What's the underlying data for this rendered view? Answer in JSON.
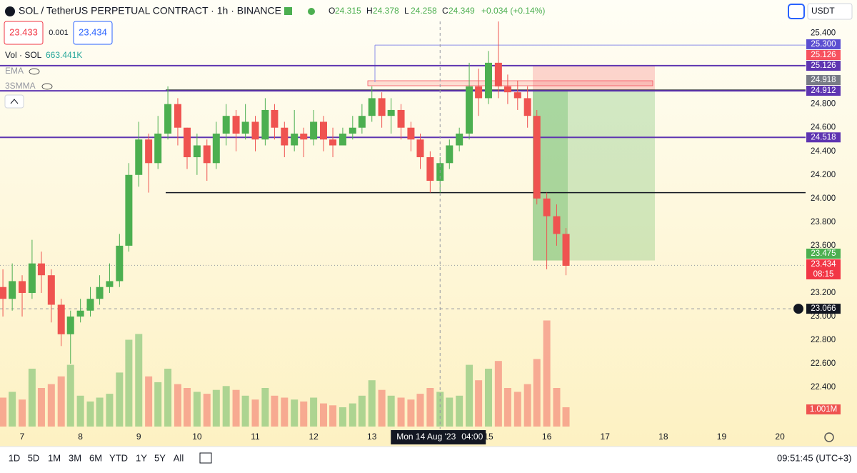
{
  "header": {
    "symbol": "SOL / TetherUS PERPETUAL CONTRACT · 1h · BINANCE",
    "ohlc": [
      {
        "key": "O",
        "value": 24.315
      },
      {
        "key": "H",
        "value": 24.378
      },
      {
        "key": "L",
        "value": 24.258
      },
      {
        "key": "C",
        "value": 24.349
      }
    ],
    "change": "+0.034 (+0.14%)",
    "sell_price": 23.433,
    "quantity": 0.001,
    "buy_price": 23.434,
    "volume_title": "Vol · SOL",
    "volume_value": "663.441K",
    "indicators": [
      "EMA",
      "3SMMA"
    ],
    "currency": "USDT"
  },
  "chart_data": {
    "type": "candlestick",
    "up_color": "#4caf50",
    "down_color": "#ef5350",
    "xlim": [
      6.62,
      20.44
    ],
    "xticks": [
      7,
      8,
      9,
      10,
      11,
      12,
      13,
      15,
      16,
      17,
      18,
      19,
      20
    ],
    "ylim": [
      22.08,
      25.47
    ],
    "yticks": [
      {
        "value": 22.4,
        "label": "22.400"
      },
      {
        "value": 22.6,
        "label": "22.600"
      },
      {
        "value": 22.8,
        "label": "22.800"
      },
      {
        "value": 23.0,
        "label": "23.000"
      },
      {
        "value": 23.2,
        "label": "23.200"
      },
      {
        "value": 23.6,
        "label": "23.600"
      },
      {
        "value": 23.8,
        "label": "23.800"
      },
      {
        "value": 24.0,
        "label": "24.000"
      },
      {
        "value": 24.2,
        "label": "24.200"
      },
      {
        "value": 24.4,
        "label": "24.400"
      },
      {
        "value": 24.6,
        "label": "24.600"
      },
      {
        "value": 24.8,
        "label": "24.800"
      },
      {
        "value": 25.4,
        "label": "25.400"
      }
    ],
    "x": [
      6.67,
      6.83,
      7.0,
      7.17,
      7.33,
      7.5,
      7.67,
      7.83,
      8.0,
      8.17,
      8.33,
      8.5,
      8.67,
      8.83,
      9.0,
      9.17,
      9.33,
      9.5,
      9.67,
      9.83,
      10.0,
      10.17,
      10.33,
      10.5,
      10.67,
      10.83,
      11.0,
      11.17,
      11.33,
      11.5,
      11.67,
      11.83,
      12.0,
      12.17,
      12.33,
      12.5,
      12.67,
      12.83,
      13.0,
      13.17,
      13.33,
      13.5,
      13.67,
      13.83,
      14.0,
      14.17,
      14.33,
      14.5,
      14.67,
      14.83,
      15.0,
      15.17,
      15.33,
      15.5,
      15.67,
      15.83,
      16.0,
      16.17,
      16.33
    ],
    "open": [
      23.25,
      23.15,
      23.3,
      23.2,
      23.45,
      23.35,
      23.1,
      22.85,
      23.0,
      23.05,
      23.15,
      23.25,
      23.3,
      23.6,
      24.2,
      24.5,
      24.3,
      24.55,
      24.8,
      24.6,
      24.35,
      24.45,
      24.3,
      24.55,
      24.7,
      24.55,
      24.65,
      24.5,
      24.75,
      24.6,
      24.45,
      24.55,
      24.5,
      24.65,
      24.5,
      24.45,
      24.55,
      24.6,
      24.7,
      24.85,
      24.7,
      24.75,
      24.6,
      24.5,
      24.35,
      24.15,
      24.3,
      24.45,
      24.55,
      24.95,
      24.85,
      25.15,
      24.95,
      24.9,
      24.85,
      24.7,
      24.0,
      23.85,
      23.7
    ],
    "high": [
      23.4,
      23.45,
      23.35,
      23.65,
      23.55,
      23.4,
      23.15,
      23.05,
      23.15,
      23.25,
      23.35,
      23.45,
      23.7,
      24.3,
      24.65,
      24.55,
      24.7,
      24.95,
      24.85,
      24.6,
      24.55,
      24.5,
      24.65,
      24.8,
      24.75,
      24.8,
      24.7,
      24.85,
      24.8,
      24.65,
      24.75,
      24.6,
      24.75,
      24.7,
      24.6,
      24.6,
      24.7,
      24.8,
      24.95,
      24.9,
      24.85,
      24.8,
      24.65,
      24.55,
      24.4,
      24.35,
      24.5,
      24.6,
      25.15,
      25.1,
      25.25,
      25.5,
      25.05,
      25.0,
      24.95,
      24.75,
      24.05,
      23.95,
      23.75
    ],
    "low": [
      23.0,
      23.05,
      23.0,
      23.15,
      23.2,
      22.95,
      22.75,
      22.6,
      22.95,
      23.0,
      23.1,
      23.2,
      23.25,
      23.55,
      24.1,
      24.05,
      24.25,
      24.5,
      24.45,
      24.25,
      24.2,
      24.15,
      24.25,
      24.45,
      24.4,
      24.5,
      24.4,
      24.45,
      24.5,
      24.35,
      24.4,
      24.35,
      24.45,
      24.4,
      24.35,
      24.45,
      24.5,
      24.55,
      24.65,
      24.6,
      24.55,
      24.5,
      24.4,
      24.25,
      24.05,
      24.05,
      24.25,
      24.4,
      24.5,
      24.7,
      24.8,
      24.85,
      24.8,
      24.75,
      24.6,
      23.95,
      23.4,
      23.6,
      23.35
    ],
    "close": [
      23.15,
      23.3,
      23.2,
      23.45,
      23.35,
      23.1,
      22.85,
      23.0,
      23.05,
      23.15,
      23.25,
      23.3,
      23.6,
      24.2,
      24.5,
      24.3,
      24.55,
      24.8,
      24.6,
      24.35,
      24.45,
      24.3,
      24.55,
      24.7,
      24.55,
      24.65,
      24.5,
      24.75,
      24.6,
      24.45,
      24.55,
      24.5,
      24.65,
      24.5,
      24.45,
      24.55,
      24.6,
      24.7,
      24.85,
      24.7,
      24.75,
      24.6,
      24.5,
      24.35,
      24.15,
      24.3,
      24.45,
      24.55,
      24.95,
      24.85,
      25.15,
      24.95,
      24.9,
      24.85,
      24.7,
      24.0,
      23.85,
      23.7,
      23.43
    ],
    "volume": [
      1.5,
      1.8,
      1.4,
      3.0,
      2.0,
      2.2,
      2.6,
      3.2,
      1.6,
      1.3,
      1.5,
      1.7,
      2.8,
      4.5,
      4.8,
      2.6,
      2.3,
      3.0,
      2.2,
      2.0,
      1.8,
      1.7,
      1.9,
      2.1,
      1.9,
      1.6,
      1.4,
      2.0,
      1.6,
      1.5,
      1.4,
      1.3,
      1.5,
      1.2,
      1.1,
      1.0,
      1.2,
      1.6,
      2.4,
      1.9,
      1.6,
      1.5,
      1.4,
      1.7,
      2.0,
      1.8,
      1.5,
      1.6,
      3.2,
      2.4,
      3.0,
      3.4,
      2.0,
      1.8,
      2.2,
      3.5,
      5.5,
      2.0,
      1.001
    ],
    "volume_label": "1.001M",
    "support_line": 24.05,
    "price_lines": [
      {
        "value": 25.3,
        "label": "25.300",
        "color": "#5b4fd1"
      },
      {
        "value": 25.126,
        "label": "25.126",
        "color": "#f7525f"
      },
      {
        "value": 25.126,
        "label": "25.126",
        "color": "#5e35b1"
      },
      {
        "value": 24.918,
        "label": "24.918",
        "color": "#787b86"
      },
      {
        "value": 24.912,
        "label": "24.912",
        "color": "#5e35b1"
      },
      {
        "value": 24.518,
        "label": "24.518",
        "color": "#5e35b1"
      },
      {
        "value": 23.475,
        "label": "23.475",
        "color": "#4caf50"
      },
      {
        "value": 23.434,
        "label": "23.434",
        "color": "#f23645"
      },
      {
        "value": 23.066,
        "label": "23.066",
        "color": "#131722"
      }
    ],
    "countdown": "08:15",
    "crosshair_date": "Mon 14 Aug '23",
    "crosshair_time": "04:00",
    "crosshair_x": 14.17
  },
  "toolbar": {
    "ranges": [
      "1D",
      "5D",
      "1M",
      "3M",
      "6M",
      "YTD",
      "1Y",
      "5Y",
      "All"
    ],
    "clock": "09:51:45 (UTC+3)"
  }
}
